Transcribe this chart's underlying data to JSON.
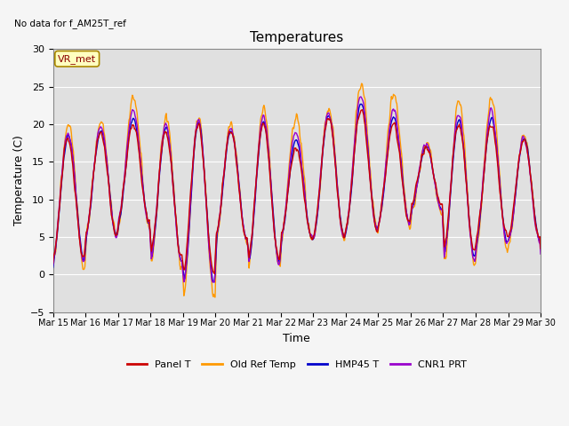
{
  "title": "Temperatures",
  "xlabel": "Time",
  "ylabel": "Temperature (C)",
  "ylim": [
    -5,
    30
  ],
  "yticks": [
    -5,
    0,
    5,
    10,
    15,
    20,
    25,
    30
  ],
  "xtick_labels": [
    "Mar 15",
    "Mar 16",
    "Mar 17",
    "Mar 18",
    "Mar 19",
    "Mar 20",
    "Mar 21",
    "Mar 22",
    "Mar 23",
    "Mar 24",
    "Mar 25",
    "Mar 26",
    "Mar 27",
    "Mar 28",
    "Mar 29",
    "Mar 30"
  ],
  "no_data_text": "No data for f_AM25T_ref",
  "annotation_text": "VR_met",
  "colors": {
    "Panel_T": "#cc0000",
    "Old_Ref_Temp": "#ff9900",
    "HMP45_T": "#0000cc",
    "CNR1_PRT": "#9900cc"
  },
  "legend_labels": [
    "Panel T",
    "Old Ref Temp",
    "HMP45 T",
    "CNR1 PRT"
  ],
  "background_color": "#e0e0e0",
  "grid_color": "#ffffff",
  "fig_bg": "#f5f5f5",
  "line_width": 1.0
}
